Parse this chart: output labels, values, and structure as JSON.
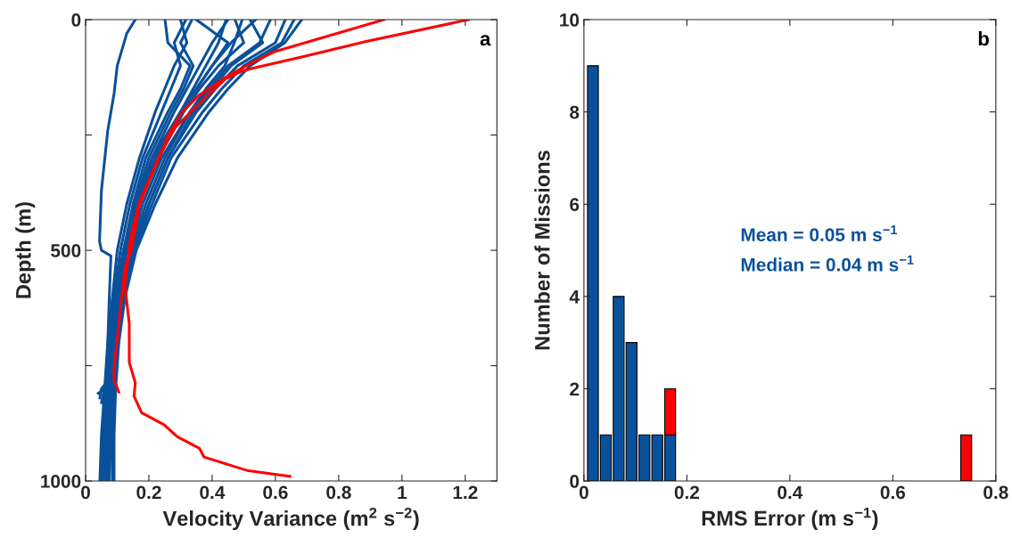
{
  "chart_data": [
    {
      "type": "line",
      "xlabel": "Velocity Variance (m$^{2}$ s$^{−2}$)",
      "ylabel": "Depth (m)",
      "annotations": [
        "a"
      ],
      "xlim": [
        0,
        1.3
      ],
      "xticks": [
        0,
        0.2,
        0.4,
        0.6,
        0.8,
        1,
        1.2
      ],
      "ylim": [
        1000,
        0
      ],
      "yticks": [
        0,
        {
          "value": 250,
          "label": null
        },
        500,
        {
          "value": 750,
          "label": null
        },
        1000
      ],
      "grid": false,
      "legend": false,
      "marker": "none",
      "line_style": "solid",
      "series": [
        {
          "color": "#0a519c",
          "x": [
            0.157,
            0.13,
            0.1,
            0.09,
            0.07,
            0.05,
            0.044,
            0.05,
            0.08,
            0.075,
            0.07,
            0.065,
            0.06,
            0.06
          ],
          "values": [
            0,
            30,
            100,
            160,
            240,
            370,
            480,
            500,
            512,
            600,
            700,
            800,
            900,
            1000
          ]
        },
        {
          "color": "#0a519c",
          "x": [
            0.251,
            0.26,
            0.33,
            0.3,
            0.26,
            0.19,
            0.15,
            0.12,
            0.1,
            0.08,
            0.07,
            0.06,
            0.05
          ],
          "values": [
            0,
            50,
            100,
            150,
            200,
            300,
            400,
            500,
            600,
            700,
            800,
            900,
            1000
          ]
        },
        {
          "color": "#0a519c",
          "x": [
            0.317,
            0.28,
            0.3,
            0.27,
            0.24,
            0.18,
            0.14,
            0.11,
            0.09,
            0.075,
            0.065,
            0.055,
            0.05
          ],
          "values": [
            0,
            50,
            100,
            150,
            200,
            300,
            400,
            500,
            600,
            700,
            800,
            900,
            1000
          ]
        },
        {
          "color": "#0a519c",
          "x": [
            0.336,
            0.3,
            0.34,
            0.31,
            0.27,
            0.2,
            0.155,
            0.12,
            0.095,
            0.08,
            0.07,
            0.06,
            0.055
          ],
          "values": [
            0,
            50,
            100,
            150,
            200,
            300,
            400,
            500,
            600,
            700,
            800,
            900,
            1000
          ]
        },
        {
          "color": "#0a519c",
          "x": [
            0.444,
            0.42,
            0.38,
            0.34,
            0.3,
            0.22,
            0.17,
            0.13,
            0.1,
            0.085,
            0.07,
            0.065,
            0.06
          ],
          "values": [
            0,
            50,
            100,
            150,
            200,
            300,
            400,
            500,
            600,
            700,
            800,
            900,
            1000
          ]
        },
        {
          "color": "#0a519c",
          "x": [
            0.472,
            0.5,
            0.42,
            0.36,
            0.31,
            0.23,
            0.17,
            0.13,
            0.105,
            0.09,
            0.075,
            0.07,
            0.065
          ],
          "values": [
            0,
            50,
            100,
            150,
            200,
            300,
            400,
            500,
            600,
            700,
            800,
            900,
            1000
          ]
        },
        {
          "color": "#0a519c",
          "x": [
            0.495,
            0.47,
            0.44,
            0.38,
            0.33,
            0.24,
            0.18,
            0.14,
            0.11,
            0.09,
            0.08,
            0.075,
            0.07
          ],
          "values": [
            0,
            50,
            100,
            150,
            200,
            300,
            400,
            500,
            600,
            700,
            800,
            900,
            1000
          ]
        },
        {
          "color": "#0a519c",
          "x": [
            0.537,
            0.46,
            0.4,
            0.35,
            0.3,
            0.22,
            0.16,
            0.125,
            0.1,
            0.085,
            0.075,
            0.05,
            0.045
          ],
          "values": [
            0,
            50,
            100,
            150,
            200,
            300,
            400,
            500,
            600,
            700,
            780,
            800,
            820
          ]
        },
        {
          "color": "#0a519c",
          "x": [
            0.584,
            0.55,
            0.45,
            0.39,
            0.33,
            0.25,
            0.19,
            0.145,
            0.115,
            0.095,
            0.085,
            0.08,
            0.075
          ],
          "values": [
            0,
            50,
            100,
            150,
            200,
            300,
            400,
            500,
            600,
            700,
            800,
            900,
            1000
          ]
        },
        {
          "color": "#0a519c",
          "x": [
            0.631,
            0.6,
            0.48,
            0.41,
            0.35,
            0.26,
            0.2,
            0.15,
            0.12,
            0.1,
            0.09,
            0.085,
            0.085
          ],
          "values": [
            0,
            50,
            100,
            150,
            200,
            300,
            400,
            500,
            600,
            700,
            800,
            900,
            1000
          ]
        },
        {
          "color": "#0a519c",
          "x": [
            0.659,
            0.62,
            0.5,
            0.43,
            0.37,
            0.27,
            0.21,
            0.155,
            0.12,
            0.1,
            0.09,
            0.06,
            0.04
          ],
          "values": [
            0,
            50,
            100,
            150,
            200,
            300,
            400,
            500,
            600,
            700,
            780,
            800,
            810
          ]
        },
        {
          "color": "#0a519c",
          "x": [
            0.683,
            0.63,
            0.52,
            0.45,
            0.39,
            0.29,
            0.22,
            0.16,
            0.125,
            0.105,
            0.095,
            0.09,
            0.09
          ],
          "values": [
            0,
            50,
            100,
            150,
            200,
            300,
            400,
            500,
            600,
            700,
            800,
            900,
            1000
          ]
        },
        {
          "color": "#0a519c",
          "x": [
            0.35,
            0.45,
            0.4,
            0.35,
            0.3,
            0.21,
            0.16,
            0.12,
            0.095,
            0.08,
            0.07,
            0.065,
            0.06
          ],
          "values": [
            0,
            50,
            100,
            150,
            200,
            300,
            400,
            500,
            600,
            700,
            800,
            900,
            1000
          ]
        },
        {
          "color": "#0a519c",
          "x": [
            0.3,
            0.32,
            0.28,
            0.25,
            0.22,
            0.17,
            0.13,
            0.1,
            0.085,
            0.07,
            0.06,
            0.05,
            0.045
          ],
          "values": [
            0,
            50,
            100,
            150,
            200,
            300,
            400,
            500,
            600,
            700,
            800,
            900,
            1000
          ]
        },
        {
          "color": "#0a519c",
          "x": [
            0.52,
            0.56,
            0.46,
            0.4,
            0.34,
            0.26,
            0.2,
            0.15,
            0.12,
            0.1,
            0.085,
            0.06,
            0.05
          ],
          "values": [
            0,
            50,
            100,
            150,
            200,
            300,
            400,
            500,
            600,
            700,
            770,
            800,
            830
          ]
        },
        {
          "color": "#0a519c",
          "x": [
            0.45,
            0.4,
            0.36,
            0.32,
            0.28,
            0.21,
            0.16,
            0.12,
            0.095,
            0.08,
            0.065,
            0.06,
            0.055
          ],
          "values": [
            0,
            50,
            100,
            150,
            200,
            300,
            400,
            500,
            600,
            700,
            800,
            900,
            1000
          ]
        },
        {
          "color": "#ff0000",
          "x": [
            0.943,
            0.595,
            0.51,
            0.443,
            0.358,
            0.302,
            0.264,
            0.227,
            0.17,
            0.145,
            0.124,
            0.105,
            0.09,
            0.09,
            0.105
          ],
          "values": [
            0,
            70,
            99,
            125,
            164,
            203,
            247,
            305,
            402,
            498,
            537,
            659,
            755,
            781,
            807
          ]
        },
        {
          "color": "#ff0000",
          "x": [
            1.21,
            0.887,
            0.689,
            0.548,
            0.495,
            0.443,
            0.387,
            0.33,
            0.283,
            0.255,
            0.203,
            0.17,
            0.142,
            0.124,
            0.138,
            0.138,
            0.157,
            0.153,
            0.177,
            0.248,
            0.29,
            0.36,
            0.374,
            0.51,
            0.646
          ],
          "values": [
            0,
            47,
            80,
            102,
            111,
            128,
            163,
            202,
            234,
            266,
            344,
            395,
            472,
            575,
            659,
            743,
            787,
            816,
            852,
            878,
            904,
            929,
            948,
            977,
            990
          ]
        }
      ]
    },
    {
      "type": "bar",
      "xlabel": "RMS Error (m s$^{−1}$)",
      "ylabel": "Number of Missions",
      "annotations": [
        "b",
        "Mean = 0.05 m s$^{−1}$",
        "Median = 0.04 m s$^{−1}$"
      ],
      "xlim": [
        0,
        0.8
      ],
      "xticks": [
        0,
        0.2,
        0.4,
        0.6,
        0.8
      ],
      "ylim": [
        0,
        10
      ],
      "yticks": [
        0,
        2,
        4,
        6,
        8,
        10
      ],
      "grid": false,
      "legend": false,
      "stacked": true,
      "x": [
        0.0175,
        0.0425,
        0.0675,
        0.0925,
        0.1175,
        0.1425,
        0.1675,
        0.7425
      ],
      "series": [
        {
          "color": "#0a519c",
          "values": [
            9,
            1,
            4,
            3,
            1,
            1,
            1,
            0
          ]
        },
        {
          "color": "#ff0000",
          "values": [
            0,
            0,
            0,
            0,
            0,
            0,
            1,
            1
          ]
        }
      ]
    }
  ]
}
